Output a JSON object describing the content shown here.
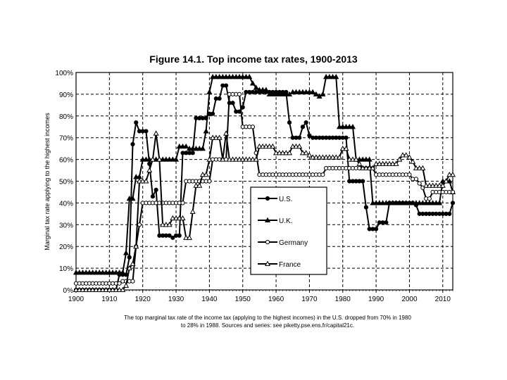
{
  "chart_data": {
    "type": "line",
    "title": "Figure 14.1. Top income tax rates, 1900-2013",
    "ylabel": "Marginal tax rate applying to the highest incomes",
    "xlabel": "",
    "xlim": [
      1900,
      2013
    ],
    "ylim": [
      0,
      100
    ],
    "x_ticks": [
      "1900",
      "1910",
      "1920",
      "1930",
      "1940",
      "1950",
      "1960",
      "1970",
      "1980",
      "1990",
      "2000",
      "2010"
    ],
    "y_ticks": [
      "0%",
      "10%",
      "20%",
      "30%",
      "40%",
      "50%",
      "60%",
      "70%",
      "80%",
      "90%",
      "100%"
    ],
    "caption_line1": "The top marginal tax rate of the income tax (applying to the highest incomes) in the U.S. dropped from 70% in 1980",
    "caption_line2": "to 28% in 1988. Sources and series: see piketty.pse.ens.fr/capital21c.",
    "series": [
      {
        "name": "U.S.",
        "marker": "circle-filled",
        "points": [
          [
            1900,
            0
          ],
          [
            1912,
            0
          ],
          [
            1913,
            7
          ],
          [
            1915,
            7
          ],
          [
            1916,
            15
          ],
          [
            1917,
            67
          ],
          [
            1918,
            77
          ],
          [
            1919,
            73
          ],
          [
            1921,
            73
          ],
          [
            1922,
            58
          ],
          [
            1923,
            43
          ],
          [
            1924,
            46
          ],
          [
            1925,
            25
          ],
          [
            1929,
            24
          ],
          [
            1930,
            25
          ],
          [
            1931,
            25
          ],
          [
            1932,
            63
          ],
          [
            1935,
            63
          ],
          [
            1936,
            79
          ],
          [
            1939,
            79
          ],
          [
            1940,
            81
          ],
          [
            1941,
            81
          ],
          [
            1942,
            88
          ],
          [
            1943,
            88
          ],
          [
            1944,
            94
          ],
          [
            1945,
            94
          ],
          [
            1946,
            86
          ],
          [
            1947,
            86
          ],
          [
            1948,
            82
          ],
          [
            1950,
            84
          ],
          [
            1951,
            91
          ],
          [
            1963,
            91
          ],
          [
            1964,
            77
          ],
          [
            1965,
            70
          ],
          [
            1967,
            70
          ],
          [
            1968,
            75
          ],
          [
            1969,
            77
          ],
          [
            1970,
            71
          ],
          [
            1971,
            70
          ],
          [
            1981,
            70
          ],
          [
            1982,
            50
          ],
          [
            1986,
            50
          ],
          [
            1987,
            38
          ],
          [
            1988,
            28
          ],
          [
            1990,
            28
          ],
          [
            1991,
            31
          ],
          [
            1993,
            31
          ],
          [
            1994,
            40
          ],
          [
            2001,
            40
          ],
          [
            2002,
            39
          ],
          [
            2003,
            35
          ],
          [
            2012,
            35
          ],
          [
            2013,
            40
          ]
        ]
      },
      {
        "name": "U.K.",
        "marker": "triangle-filled",
        "points": [
          [
            1900,
            8
          ],
          [
            1909,
            8
          ],
          [
            1910,
            8
          ],
          [
            1914,
            8
          ],
          [
            1915,
            17
          ],
          [
            1916,
            42
          ],
          [
            1917,
            42
          ],
          [
            1918,
            52
          ],
          [
            1919,
            52
          ],
          [
            1920,
            60
          ],
          [
            1930,
            60
          ],
          [
            1931,
            66
          ],
          [
            1933,
            66
          ],
          [
            1934,
            65
          ],
          [
            1938,
            65
          ],
          [
            1939,
            73
          ],
          [
            1940,
            91
          ],
          [
            1941,
            98
          ],
          [
            1952,
            98
          ],
          [
            1953,
            95
          ],
          [
            1954,
            93
          ],
          [
            1955,
            92
          ],
          [
            1957,
            92
          ],
          [
            1958,
            90
          ],
          [
            1964,
            90
          ],
          [
            1965,
            91
          ],
          [
            1971,
            91
          ],
          [
            1972,
            90
          ],
          [
            1973,
            89
          ],
          [
            1974,
            90
          ],
          [
            1975,
            98
          ],
          [
            1978,
            98
          ],
          [
            1979,
            75
          ],
          [
            1983,
            75
          ],
          [
            1984,
            60
          ],
          [
            1988,
            60
          ],
          [
            1989,
            40
          ],
          [
            2009,
            40
          ],
          [
            2010,
            50
          ],
          [
            2013,
            45
          ]
        ]
      },
      {
        "name": "Germany",
        "marker": "circle-open",
        "points": [
          [
            1900,
            3
          ],
          [
            1912,
            3
          ],
          [
            1913,
            3
          ],
          [
            1914,
            4
          ],
          [
            1917,
            4
          ],
          [
            1918,
            20
          ],
          [
            1919,
            30
          ],
          [
            1920,
            40
          ],
          [
            1930,
            40
          ],
          [
            1931,
            40
          ],
          [
            1932,
            40
          ],
          [
            1933,
            50
          ],
          [
            1940,
            50
          ],
          [
            1941,
            60
          ],
          [
            1945,
            60
          ],
          [
            1946,
            90
          ],
          [
            1949,
            90
          ],
          [
            1950,
            75
          ],
          [
            1953,
            75
          ],
          [
            1954,
            63
          ],
          [
            1955,
            53
          ],
          [
            1970,
            53
          ],
          [
            1975,
            56
          ],
          [
            1989,
            56
          ],
          [
            1990,
            53
          ],
          [
            2000,
            53
          ],
          [
            2001,
            51
          ],
          [
            2003,
            49
          ],
          [
            2004,
            47
          ],
          [
            2005,
            42
          ],
          [
            2007,
            45
          ],
          [
            2013,
            45
          ]
        ]
      },
      {
        "name": "France",
        "marker": "triangle-open",
        "points": [
          [
            1900,
            0
          ],
          [
            1914,
            0
          ],
          [
            1915,
            2
          ],
          [
            1916,
            10
          ],
          [
            1917,
            12
          ],
          [
            1918,
            20
          ],
          [
            1919,
            50
          ],
          [
            1920,
            50
          ],
          [
            1922,
            55
          ],
          [
            1923,
            60
          ],
          [
            1924,
            72
          ],
          [
            1925,
            60
          ],
          [
            1926,
            30
          ],
          [
            1928,
            30
          ],
          [
            1929,
            33
          ],
          [
            1932,
            33
          ],
          [
            1933,
            24
          ],
          [
            1935,
            36
          ],
          [
            1936,
            48
          ],
          [
            1938,
            53
          ],
          [
            1940,
            60
          ],
          [
            1941,
            70
          ],
          [
            1943,
            70
          ],
          [
            1944,
            60
          ],
          [
            1945,
            72
          ],
          [
            1946,
            60
          ],
          [
            1954,
            60
          ],
          [
            1955,
            66
          ],
          [
            1959,
            66
          ],
          [
            1960,
            63
          ],
          [
            1964,
            63
          ],
          [
            1965,
            66
          ],
          [
            1967,
            66
          ],
          [
            1968,
            63
          ],
          [
            1970,
            62
          ],
          [
            1971,
            61
          ],
          [
            1979,
            61
          ],
          [
            1980,
            65
          ],
          [
            1981,
            65
          ],
          [
            1982,
            60
          ],
          [
            1985,
            58
          ],
          [
            1986,
            56
          ],
          [
            1989,
            56
          ],
          [
            1990,
            58
          ],
          [
            1996,
            58
          ],
          [
            1997,
            60
          ],
          [
            1998,
            62
          ],
          [
            2000,
            61
          ],
          [
            2001,
            59
          ],
          [
            2002,
            56
          ],
          [
            2004,
            56
          ],
          [
            2005,
            48
          ],
          [
            2010,
            48
          ],
          [
            2011,
            50
          ],
          [
            2012,
            53
          ],
          [
            2013,
            53
          ]
        ]
      }
    ],
    "legend": [
      "U.S.",
      "U.K.",
      "Germany",
      "France"
    ]
  }
}
